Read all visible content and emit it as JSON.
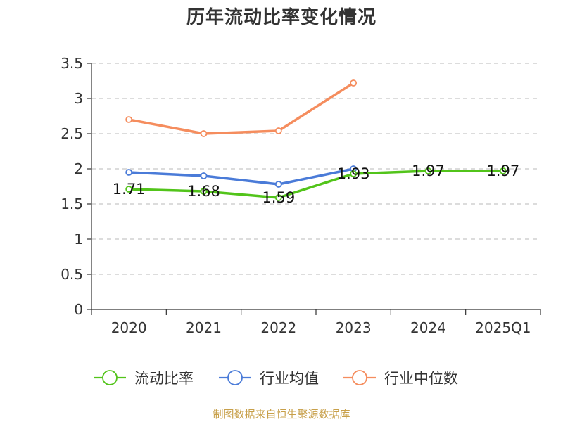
{
  "chart_data": {
    "type": "line",
    "title": "历年流动比率变化情况",
    "categories": [
      "2020",
      "2021",
      "2022",
      "2023",
      "2024",
      "2025Q1"
    ],
    "ylim": [
      0,
      3.5
    ],
    "yticks": [
      "0",
      "0.5",
      "1",
      "1.5",
      "2",
      "2.5",
      "3",
      "3.5"
    ],
    "grid": true,
    "legend_position": "bottom",
    "series": [
      {
        "name": "流动比率",
        "color": "#52c41a",
        "values": [
          1.71,
          1.68,
          1.59,
          1.93,
          1.97,
          1.97
        ],
        "labels": [
          "1.71",
          "1.68",
          "1.59",
          "1.93",
          "1.97",
          "1.97"
        ]
      },
      {
        "name": "行业均值",
        "color": "#4a7bd8",
        "values": [
          1.95,
          1.9,
          1.78,
          2.0,
          null,
          null
        ]
      },
      {
        "name": "行业中位数",
        "color": "#f58d5e",
        "values": [
          2.7,
          2.5,
          2.54,
          3.22,
          null,
          null
        ]
      }
    ]
  },
  "source": "制图数据来自恒生聚源数据库"
}
